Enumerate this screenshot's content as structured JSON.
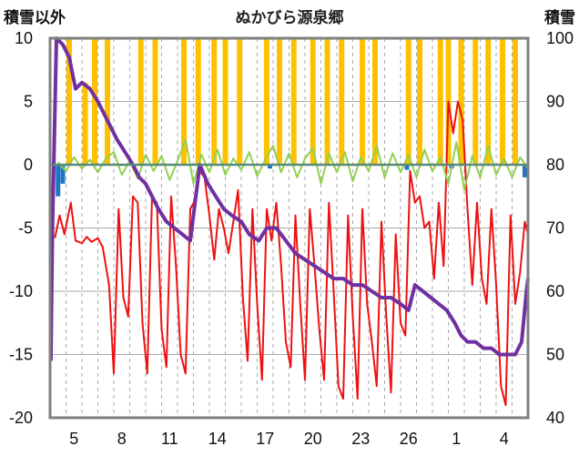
{
  "chart_data": {
    "type": "line",
    "title": "ぬかびら源泉郷",
    "left_axis": {
      "label": "積雪以外",
      "range": [
        -20,
        10
      ],
      "ticks": [
        "10",
        "5",
        "0",
        "-5",
        "-10",
        "-15",
        "-20"
      ]
    },
    "right_axis": {
      "label": "積雪",
      "range": [
        40,
        100
      ],
      "ticks": [
        "100",
        "90",
        "80",
        "70",
        "60",
        "50",
        "40"
      ]
    },
    "x_ticks": [
      "5",
      "8",
      "11",
      "14",
      "17",
      "20",
      "23",
      "26",
      "1",
      "4"
    ],
    "x_day_range": [
      3,
      33
    ],
    "grid": true,
    "colors": {
      "temperature": "#ee1111",
      "change": "#92d050",
      "precip": "#ffc000",
      "snowdepth": "#7030a0",
      "blue": "#1f77c4",
      "grid": "#aaaaaa",
      "frame": "#808080"
    },
    "series": [
      {
        "axis": "left",
        "type": "line",
        "points": [
          [
            3.3,
            -5.8
          ],
          [
            3.6,
            -4.0
          ],
          [
            3.9,
            -5.5
          ],
          [
            4.3,
            -3.0
          ],
          [
            4.6,
            -6.0
          ],
          [
            5.0,
            -6.2
          ],
          [
            5.3,
            -5.7
          ],
          [
            5.6,
            -6.1
          ],
          [
            6.0,
            -5.8
          ],
          [
            6.3,
            -6.5
          ],
          [
            6.7,
            -9.5
          ],
          [
            7.0,
            -16.5
          ],
          [
            7.3,
            -3.5
          ],
          [
            7.6,
            -10.5
          ],
          [
            7.9,
            -12.0
          ],
          [
            8.2,
            -2.5
          ],
          [
            8.5,
            -3.0
          ],
          [
            8.8,
            -12.5
          ],
          [
            9.1,
            -16.5
          ],
          [
            9.4,
            -2.5
          ],
          [
            9.7,
            -3.0
          ],
          [
            10.0,
            -13.0
          ],
          [
            10.3,
            -16.0
          ],
          [
            10.6,
            -2.5
          ],
          [
            10.9,
            -8.0
          ],
          [
            11.2,
            -15.0
          ],
          [
            11.5,
            -16.5
          ],
          [
            11.8,
            -3.5
          ],
          [
            12.1,
            -2.8
          ],
          [
            12.4,
            -0.5
          ],
          [
            12.7,
            -1.0
          ],
          [
            13.0,
            -4.0
          ],
          [
            13.3,
            -7.5
          ],
          [
            13.6,
            -3.5
          ],
          [
            13.9,
            -5.0
          ],
          [
            14.2,
            -7.0
          ],
          [
            14.5,
            -4.5
          ],
          [
            14.8,
            -2.0
          ],
          [
            15.1,
            -10.5
          ],
          [
            15.4,
            -15.5
          ],
          [
            15.7,
            -3.5
          ],
          [
            16.0,
            -11.0
          ],
          [
            16.3,
            -17.0
          ],
          [
            16.6,
            -3.5
          ],
          [
            16.9,
            -6.0
          ],
          [
            17.2,
            -3.0
          ],
          [
            17.5,
            -8.0
          ],
          [
            17.8,
            -14.0
          ],
          [
            18.1,
            -16.0
          ],
          [
            18.4,
            -4.0
          ],
          [
            18.7,
            -11.0
          ],
          [
            19.0,
            -17.0
          ],
          [
            19.3,
            -3.5
          ],
          [
            19.6,
            -8.0
          ],
          [
            19.9,
            -13.0
          ],
          [
            20.2,
            -17.0
          ],
          [
            20.5,
            -3.0
          ],
          [
            20.8,
            -10.0
          ],
          [
            21.1,
            -17.5
          ],
          [
            21.4,
            -18.5
          ],
          [
            21.7,
            -4.0
          ],
          [
            22.0,
            -12.0
          ],
          [
            22.3,
            -18.5
          ],
          [
            22.6,
            -3.5
          ],
          [
            22.9,
            -11.0
          ],
          [
            23.2,
            -14.0
          ],
          [
            23.5,
            -17.5
          ],
          [
            23.8,
            -4.5
          ],
          [
            24.1,
            -12.0
          ],
          [
            24.4,
            -18.0
          ],
          [
            24.7,
            -5.5
          ],
          [
            25.0,
            -12.5
          ],
          [
            25.3,
            -13.5
          ],
          [
            25.6,
            -0.5
          ],
          [
            25.9,
            -3.0
          ],
          [
            26.2,
            -2.5
          ],
          [
            26.5,
            -5.0
          ],
          [
            26.8,
            -4.5
          ],
          [
            27.1,
            -9.0
          ],
          [
            27.4,
            -3.0
          ],
          [
            27.7,
            -8.0
          ],
          [
            28.0,
            5.0
          ],
          [
            28.3,
            2.5
          ],
          [
            28.6,
            5.0
          ],
          [
            28.9,
            3.5
          ],
          [
            29.2,
            -3.5
          ],
          [
            29.5,
            -9.5
          ],
          [
            29.8,
            -3.0
          ],
          [
            30.1,
            -9.0
          ],
          [
            30.4,
            -11.0
          ],
          [
            30.7,
            -3.5
          ],
          [
            31.0,
            -9.5
          ],
          [
            31.3,
            -17.5
          ],
          [
            31.6,
            -19.0
          ],
          [
            31.9,
            -4.0
          ],
          [
            32.2,
            -11.0
          ],
          [
            32.5,
            -8.5
          ],
          [
            32.8,
            -4.5
          ],
          [
            33.0,
            -5.5
          ]
        ]
      },
      {
        "axis": "left",
        "type": "line",
        "points": [
          [
            3.5,
            0.2
          ],
          [
            4.0,
            -0.5
          ],
          [
            4.5,
            0.6
          ],
          [
            5.0,
            -0.3
          ],
          [
            5.5,
            0.4
          ],
          [
            6.0,
            -0.6
          ],
          [
            6.5,
            0.5
          ],
          [
            7.0,
            1.0
          ],
          [
            7.5,
            -0.8
          ],
          [
            8.0,
            0.3
          ],
          [
            8.5,
            -1.1
          ],
          [
            9.0,
            0.8
          ],
          [
            9.5,
            -0.5
          ],
          [
            10.0,
            0.7
          ],
          [
            10.5,
            -1.2
          ],
          [
            11.0,
            0.3
          ],
          [
            11.5,
            2.0
          ],
          [
            12.0,
            -1.5
          ],
          [
            12.5,
            0.8
          ],
          [
            13.0,
            -0.6
          ],
          [
            13.5,
            1.2
          ],
          [
            14.0,
            -0.8
          ],
          [
            14.5,
            0.5
          ],
          [
            15.0,
            -0.4
          ],
          [
            15.5,
            1.0
          ],
          [
            16.0,
            -0.9
          ],
          [
            16.5,
            0.4
          ],
          [
            17.0,
            1.5
          ],
          [
            17.5,
            -0.6
          ],
          [
            18.0,
            0.9
          ],
          [
            18.5,
            -1.0
          ],
          [
            19.0,
            0.5
          ],
          [
            19.5,
            1.3
          ],
          [
            20.0,
            -1.5
          ],
          [
            20.5,
            0.9
          ],
          [
            21.0,
            -0.6
          ],
          [
            21.5,
            1.0
          ],
          [
            22.0,
            -1.3
          ],
          [
            22.5,
            0.6
          ],
          [
            23.0,
            -0.5
          ],
          [
            23.5,
            1.5
          ],
          [
            24.0,
            -1.0
          ],
          [
            24.5,
            0.9
          ],
          [
            25.0,
            -0.6
          ],
          [
            25.5,
            0.8
          ],
          [
            26.0,
            -1.0
          ],
          [
            26.5,
            1.2
          ],
          [
            27.0,
            -0.5
          ],
          [
            27.5,
            0.6
          ],
          [
            28.0,
            -1.5
          ],
          [
            28.5,
            1.8
          ],
          [
            29.0,
            -2.0
          ],
          [
            29.5,
            0.7
          ],
          [
            30.0,
            -1.0
          ],
          [
            30.5,
            1.5
          ],
          [
            31.0,
            -0.8
          ],
          [
            31.5,
            0.5
          ],
          [
            32.0,
            -1.0
          ],
          [
            32.5,
            0.6
          ],
          [
            33.0,
            -0.3
          ]
        ]
      },
      {
        "axis": "left",
        "type": "bar",
        "base": 0,
        "points": [
          [
            4.2,
            10
          ],
          [
            5.2,
            6.5
          ],
          [
            5.8,
            10
          ],
          [
            6.6,
            10
          ],
          [
            8.7,
            10
          ],
          [
            9.6,
            10
          ],
          [
            11.4,
            10
          ],
          [
            12.3,
            10
          ],
          [
            13.3,
            10
          ],
          [
            14.0,
            10
          ],
          [
            14.9,
            10
          ],
          [
            16.6,
            10
          ],
          [
            17.4,
            10
          ],
          [
            18.3,
            10
          ],
          [
            19.5,
            10
          ],
          [
            20.4,
            10
          ],
          [
            21.3,
            10
          ],
          [
            22.6,
            10
          ],
          [
            23.4,
            10
          ],
          [
            25.5,
            10
          ],
          [
            26.2,
            10
          ],
          [
            27.5,
            10
          ],
          [
            28.0,
            10
          ],
          [
            28.8,
            10
          ],
          [
            29.7,
            10
          ],
          [
            30.5,
            10
          ],
          [
            31.4,
            10
          ],
          [
            32.2,
            10
          ]
        ]
      },
      {
        "axis": "left",
        "type": "bar",
        "base": 0,
        "points": [
          [
            3.5,
            -2.5
          ],
          [
            3.8,
            -1.5
          ],
          [
            16.8,
            -0.3
          ],
          [
            25.4,
            -0.4
          ],
          [
            28.2,
            -0.3
          ],
          [
            32.8,
            -1.0
          ]
        ]
      },
      {
        "axis": "right",
        "type": "line",
        "points": [
          [
            3.05,
            49
          ],
          [
            3.15,
            70
          ],
          [
            3.4,
            100
          ],
          [
            3.8,
            99
          ],
          [
            4.2,
            97
          ],
          [
            4.6,
            92
          ],
          [
            5.0,
            93
          ],
          [
            5.5,
            92
          ],
          [
            6.0,
            90
          ],
          [
            6.4,
            88
          ],
          [
            6.8,
            86
          ],
          [
            7.2,
            84
          ],
          [
            7.7,
            82
          ],
          [
            8.2,
            80
          ],
          [
            8.6,
            78
          ],
          [
            9.0,
            77
          ],
          [
            9.4,
            75
          ],
          [
            9.8,
            73
          ],
          [
            10.3,
            71
          ],
          [
            10.8,
            70
          ],
          [
            11.3,
            69
          ],
          [
            11.8,
            68
          ],
          [
            12.4,
            80
          ],
          [
            12.9,
            77
          ],
          [
            13.4,
            75
          ],
          [
            13.9,
            73
          ],
          [
            14.4,
            72
          ],
          [
            15.0,
            71
          ],
          [
            15.5,
            69
          ],
          [
            16.1,
            68
          ],
          [
            16.6,
            70
          ],
          [
            17.2,
            70
          ],
          [
            17.8,
            68
          ],
          [
            18.4,
            66
          ],
          [
            19.0,
            65
          ],
          [
            19.6,
            64
          ],
          [
            20.2,
            63
          ],
          [
            20.8,
            62
          ],
          [
            21.4,
            62
          ],
          [
            22.0,
            61
          ],
          [
            22.6,
            61
          ],
          [
            23.2,
            60
          ],
          [
            23.8,
            59
          ],
          [
            24.4,
            59
          ],
          [
            25.0,
            58
          ],
          [
            25.5,
            57
          ],
          [
            25.9,
            61
          ],
          [
            26.4,
            60
          ],
          [
            26.9,
            59
          ],
          [
            27.4,
            58
          ],
          [
            27.9,
            57
          ],
          [
            28.4,
            55
          ],
          [
            28.8,
            53
          ],
          [
            29.2,
            52
          ],
          [
            29.7,
            52
          ],
          [
            30.2,
            51
          ],
          [
            30.7,
            51
          ],
          [
            31.2,
            50
          ],
          [
            31.7,
            50
          ],
          [
            32.2,
            50
          ],
          [
            32.6,
            52
          ],
          [
            32.9,
            60
          ],
          [
            33.0,
            62
          ]
        ]
      }
    ]
  }
}
